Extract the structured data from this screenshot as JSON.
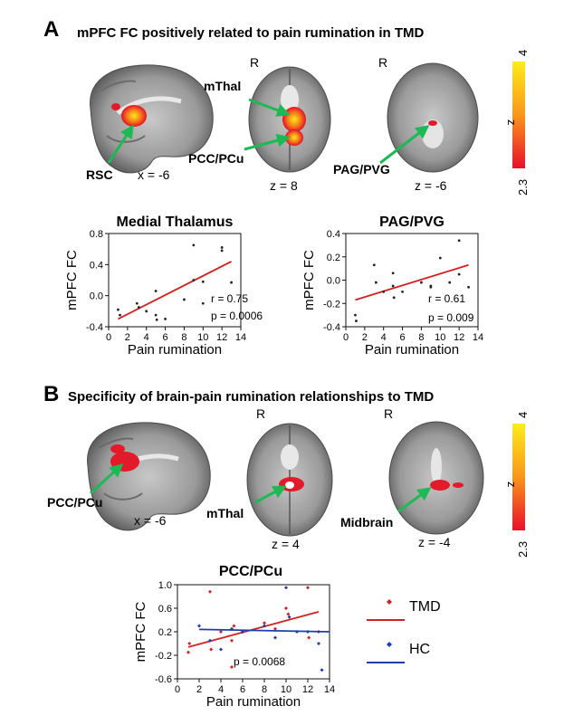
{
  "panel_a": {
    "letter": "A",
    "title": "mPFC FC positively related to pain rumination in TMD",
    "orientation_labels": [
      "R",
      "R"
    ],
    "labels": {
      "rsc": "RSC",
      "mthal": "mThal",
      "pcc": "PCC/PCu",
      "pag": "PAG/PVG"
    },
    "coords": {
      "sagittal": "x = -6",
      "axial1": "z = 8",
      "axial2": "z = -6"
    },
    "colorbar": {
      "max": "4",
      "min": "2.3",
      "label": "z",
      "gradient_top": "#ffec1a",
      "gradient_bottom": "#e8102a"
    }
  },
  "panel_b": {
    "letter": "B",
    "title": "Specificity of brain-pain rumination relationships to TMD",
    "orientation_labels": [
      "R",
      "R"
    ],
    "labels": {
      "pcc": "PCC/PCu",
      "mthal": "mThal",
      "midbrain": "Midbrain"
    },
    "coords": {
      "sagittal": "x = -6",
      "axial1": "z = 4",
      "axial2": "z = -4"
    },
    "colorbar": {
      "max": "4",
      "min": "2.3",
      "label": "z",
      "gradient_top": "#ffec1a",
      "gradient_bottom": "#e8102a"
    }
  },
  "arrow_color": "#1db954",
  "chart_data": [
    {
      "type": "scatter",
      "title": "Medial Thalamus",
      "xlabel": "Pain rumination",
      "ylabel": "mPFC FC",
      "xlim": [
        0,
        14
      ],
      "ylim": [
        -0.4,
        0.8
      ],
      "xticks": [
        "0",
        "2",
        "4",
        "6",
        "8",
        "10",
        "12",
        "14"
      ],
      "yticks": [
        "-0.4",
        "0.0",
        "0.4",
        "0.8"
      ],
      "points": [
        [
          1,
          -0.18
        ],
        [
          1.2,
          -0.25
        ],
        [
          3,
          -0.1
        ],
        [
          3.2,
          -0.15
        ],
        [
          4,
          -0.2
        ],
        [
          5,
          0.06
        ],
        [
          5,
          -0.25
        ],
        [
          5.1,
          -0.31
        ],
        [
          6,
          -0.3
        ],
        [
          8,
          -0.05
        ],
        [
          9,
          0.2
        ],
        [
          9,
          0.65
        ],
        [
          10,
          0.18
        ],
        [
          10,
          -0.1
        ],
        [
          12,
          0.62
        ],
        [
          12,
          0.58
        ],
        [
          13,
          0.17
        ]
      ],
      "fit": [
        [
          1,
          -0.3
        ],
        [
          13,
          0.44
        ]
      ],
      "annotations": [
        "r = 0.75",
        "p = 0.0006"
      ],
      "point_color": "#222222",
      "line_color": "#d42020"
    },
    {
      "type": "scatter",
      "title": "PAG/PVG",
      "xlabel": "Pain rumination",
      "ylabel": "mPFC FC",
      "xlim": [
        0,
        14
      ],
      "ylim": [
        -0.4,
        0.4
      ],
      "xticks": [
        "0",
        "2",
        "4",
        "6",
        "8",
        "10",
        "12",
        "14"
      ],
      "yticks": [
        "-0.4",
        "-0.2",
        "0.0",
        "0.2",
        "0.4"
      ],
      "points": [
        [
          1,
          -0.3
        ],
        [
          1.1,
          -0.35
        ],
        [
          3,
          0.13
        ],
        [
          3.2,
          -0.02
        ],
        [
          4,
          -0.1
        ],
        [
          5,
          0.06
        ],
        [
          5,
          -0.05
        ],
        [
          5.1,
          -0.15
        ],
        [
          6,
          -0.1
        ],
        [
          8,
          -0.02
        ],
        [
          9,
          -0.05
        ],
        [
          9,
          -0.06
        ],
        [
          10,
          0.19
        ],
        [
          11,
          -0.02
        ],
        [
          12,
          0.34
        ],
        [
          12,
          0.05
        ],
        [
          13,
          -0.06
        ]
      ],
      "fit": [
        [
          1,
          -0.17
        ],
        [
          13,
          0.13
        ]
      ],
      "annotations": [
        "r = 0.61",
        "p = 0.009"
      ],
      "point_color": "#222222",
      "line_color": "#d42020"
    },
    {
      "type": "scatter",
      "title": "PCC/PCu",
      "xlabel": "Pain rumination",
      "ylabel": "mPFC FC",
      "xlim": [
        0,
        14
      ],
      "ylim": [
        -0.6,
        1.0
      ],
      "xticks": [
        "0",
        "2",
        "4",
        "6",
        "8",
        "10",
        "12",
        "14"
      ],
      "yticks": [
        "-0.6",
        "-0.2",
        "0.2",
        "0.6",
        "1.0"
      ],
      "series": [
        {
          "name": "TMD",
          "color": "#d42020",
          "points": [
            [
              1,
              -0.15
            ],
            [
              1.1,
              0.0
            ],
            [
              3,
              0.88
            ],
            [
              3.1,
              -0.1
            ],
            [
              4,
              0.2
            ],
            [
              5,
              -0.4
            ],
            [
              5,
              0.05
            ],
            [
              5.2,
              0.3
            ],
            [
              6,
              0.2
            ],
            [
              8,
              0.35
            ],
            [
              9,
              0.25
            ],
            [
              10,
              0.6
            ],
            [
              10.2,
              0.5
            ],
            [
              12,
              0.95
            ],
            [
              12.1,
              0.1
            ],
            [
              13,
              0.2
            ]
          ],
          "fit": [
            [
              1,
              -0.06
            ],
            [
              13,
              0.54
            ]
          ]
        },
        {
          "name": "HC",
          "color": "#1f3fa6",
          "points": [
            [
              2,
              0.3
            ],
            [
              3,
              0.05
            ],
            [
              4,
              -0.1
            ],
            [
              5,
              0.25
            ],
            [
              6,
              0.2
            ],
            [
              8,
              0.3
            ],
            [
              9,
              0.1
            ],
            [
              10,
              0.95
            ],
            [
              10.3,
              0.45
            ],
            [
              11,
              0.2
            ],
            [
              12,
              0.2
            ],
            [
              13,
              0.0
            ],
            [
              13.3,
              -0.45
            ]
          ],
          "fit": [
            [
              2,
              0.24
            ],
            [
              14,
              0.2
            ]
          ]
        }
      ],
      "annotations": [
        "p = 0.0068"
      ]
    }
  ]
}
